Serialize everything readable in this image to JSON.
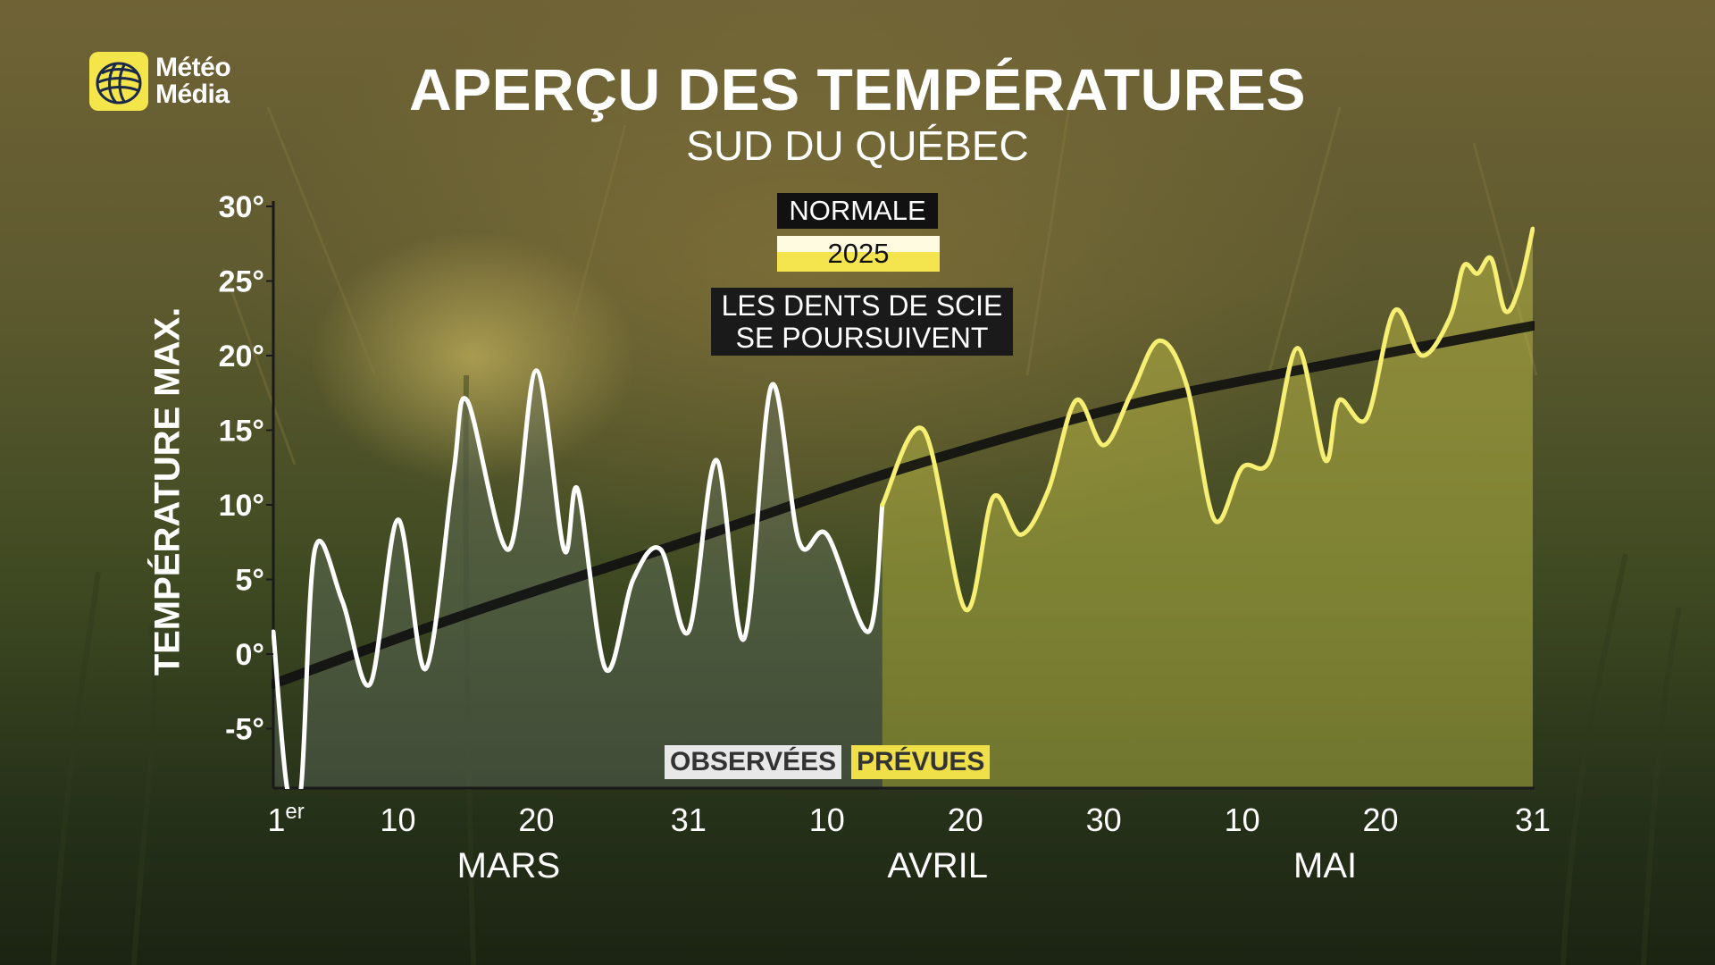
{
  "logo": {
    "line1": "Météo",
    "line2": "Média"
  },
  "title": "APERÇU DES TEMPÉRATURES",
  "subtitle": "SUD DU QUÉBEC",
  "legend": {
    "normal": "NORMALE",
    "year": "2025",
    "note_line1": "LES DENTS DE SCIE",
    "note_line2": "SE POURSUIVENT"
  },
  "y_axis_label": "TEMPÉRATURE MAX.",
  "tags": {
    "observed": "OBSERVÉES",
    "forecast": "PRÉVUES"
  },
  "colors": {
    "observed": "#ffffff",
    "forecast": "#f6ef73",
    "normal": "#111111",
    "forecast_fill": "#c9c84a",
    "observed_fill": "#6d7a70"
  },
  "chart_data": {
    "type": "line",
    "title": "APERÇU DES TEMPÉRATURES",
    "subtitle": "SUD DU QUÉBEC",
    "ylabel": "TEMPÉRATURE MAX.",
    "xlabel": "",
    "ylim": [
      -9,
      30
    ],
    "yticks": [
      30,
      25,
      20,
      15,
      10,
      5,
      0,
      -5
    ],
    "ytick_labels": [
      "30°",
      "25°",
      "20°",
      "15°",
      "10°",
      "5°",
      "0°",
      "-5°"
    ],
    "xlim": [
      "2025-03-01",
      "2025-05-31"
    ],
    "xtick_labels": [
      {
        "date": "2025-03-01",
        "label": "1",
        "sup": "er"
      },
      {
        "date": "2025-03-10",
        "label": "10"
      },
      {
        "date": "2025-03-20",
        "label": "20"
      },
      {
        "date": "2025-03-31",
        "label": "31"
      },
      {
        "date": "2025-04-10",
        "label": "10"
      },
      {
        "date": "2025-04-20",
        "label": "20"
      },
      {
        "date": "2025-04-30",
        "label": "30"
      },
      {
        "date": "2025-05-10",
        "label": "10"
      },
      {
        "date": "2025-05-20",
        "label": "20"
      },
      {
        "date": "2025-05-31",
        "label": "31"
      }
    ],
    "month_labels": [
      {
        "label": "MARS",
        "date": "2025-03-18"
      },
      {
        "label": "AVRIL",
        "date": "2025-04-18"
      },
      {
        "label": "MAI",
        "date": "2025-05-16"
      }
    ],
    "series": [
      {
        "name": "NORMALE",
        "points": [
          [
            "2025-03-01",
            -2.0
          ],
          [
            "2025-03-15",
            2.7
          ],
          [
            "2025-04-01",
            7.9
          ],
          [
            "2025-04-15",
            12.3
          ],
          [
            "2025-05-01",
            16.5
          ],
          [
            "2025-05-15",
            19.2
          ],
          [
            "2025-05-31",
            22.0
          ]
        ]
      },
      {
        "name": "2025",
        "segment": "OBSERVÉES",
        "points": [
          [
            "2025-03-01",
            1.5
          ],
          [
            "2025-03-02",
            -9.0
          ],
          [
            "2025-03-03",
            -9.0
          ],
          [
            "2025-03-04",
            7.0
          ],
          [
            "2025-03-06",
            3.5
          ],
          [
            "2025-03-08",
            -2.0
          ],
          [
            "2025-03-10",
            9.0
          ],
          [
            "2025-03-12",
            -1.0
          ],
          [
            "2025-03-14",
            12.0
          ],
          [
            "2025-03-15",
            17.0
          ],
          [
            "2025-03-18",
            7.0
          ],
          [
            "2025-03-20",
            19.0
          ],
          [
            "2025-03-22",
            7.0
          ],
          [
            "2025-03-23",
            11.0
          ],
          [
            "2025-03-25",
            -1.0
          ],
          [
            "2025-03-27",
            5.0
          ],
          [
            "2025-03-29",
            7.0
          ],
          [
            "2025-03-31",
            1.5
          ],
          [
            "2025-04-02",
            13.0
          ],
          [
            "2025-04-04",
            1.0
          ],
          [
            "2025-04-06",
            18.0
          ],
          [
            "2025-04-08",
            7.5
          ],
          [
            "2025-04-10",
            8.0
          ],
          [
            "2025-04-13",
            1.5
          ],
          [
            "2025-04-14",
            10.0
          ]
        ]
      },
      {
        "name": "2025",
        "segment": "PRÉVUES",
        "points": [
          [
            "2025-04-14",
            10.0
          ],
          [
            "2025-04-17",
            15.0
          ],
          [
            "2025-04-20",
            3.0
          ],
          [
            "2025-04-22",
            10.5
          ],
          [
            "2025-04-24",
            8.0
          ],
          [
            "2025-04-26",
            11.0
          ],
          [
            "2025-04-28",
            17.0
          ],
          [
            "2025-04-30",
            14.0
          ],
          [
            "2025-05-02",
            17.5
          ],
          [
            "2025-05-04",
            21.0
          ],
          [
            "2025-05-06",
            18.0
          ],
          [
            "2025-05-08",
            9.0
          ],
          [
            "2025-05-10",
            12.5
          ],
          [
            "2025-05-12",
            13.0
          ],
          [
            "2025-05-14",
            20.5
          ],
          [
            "2025-05-16",
            13.0
          ],
          [
            "2025-05-17",
            17.0
          ],
          [
            "2025-05-19",
            15.8
          ],
          [
            "2025-05-21",
            23.0
          ],
          [
            "2025-05-23",
            20.0
          ],
          [
            "2025-05-25",
            22.5
          ],
          [
            "2025-05-26",
            26.0
          ],
          [
            "2025-05-27",
            25.5
          ],
          [
            "2025-05-28",
            26.5
          ],
          [
            "2025-05-29",
            23.0
          ],
          [
            "2025-05-30",
            24.5
          ],
          [
            "2025-05-31",
            28.5
          ]
        ]
      }
    ],
    "grid": false,
    "legend": "top-center"
  }
}
